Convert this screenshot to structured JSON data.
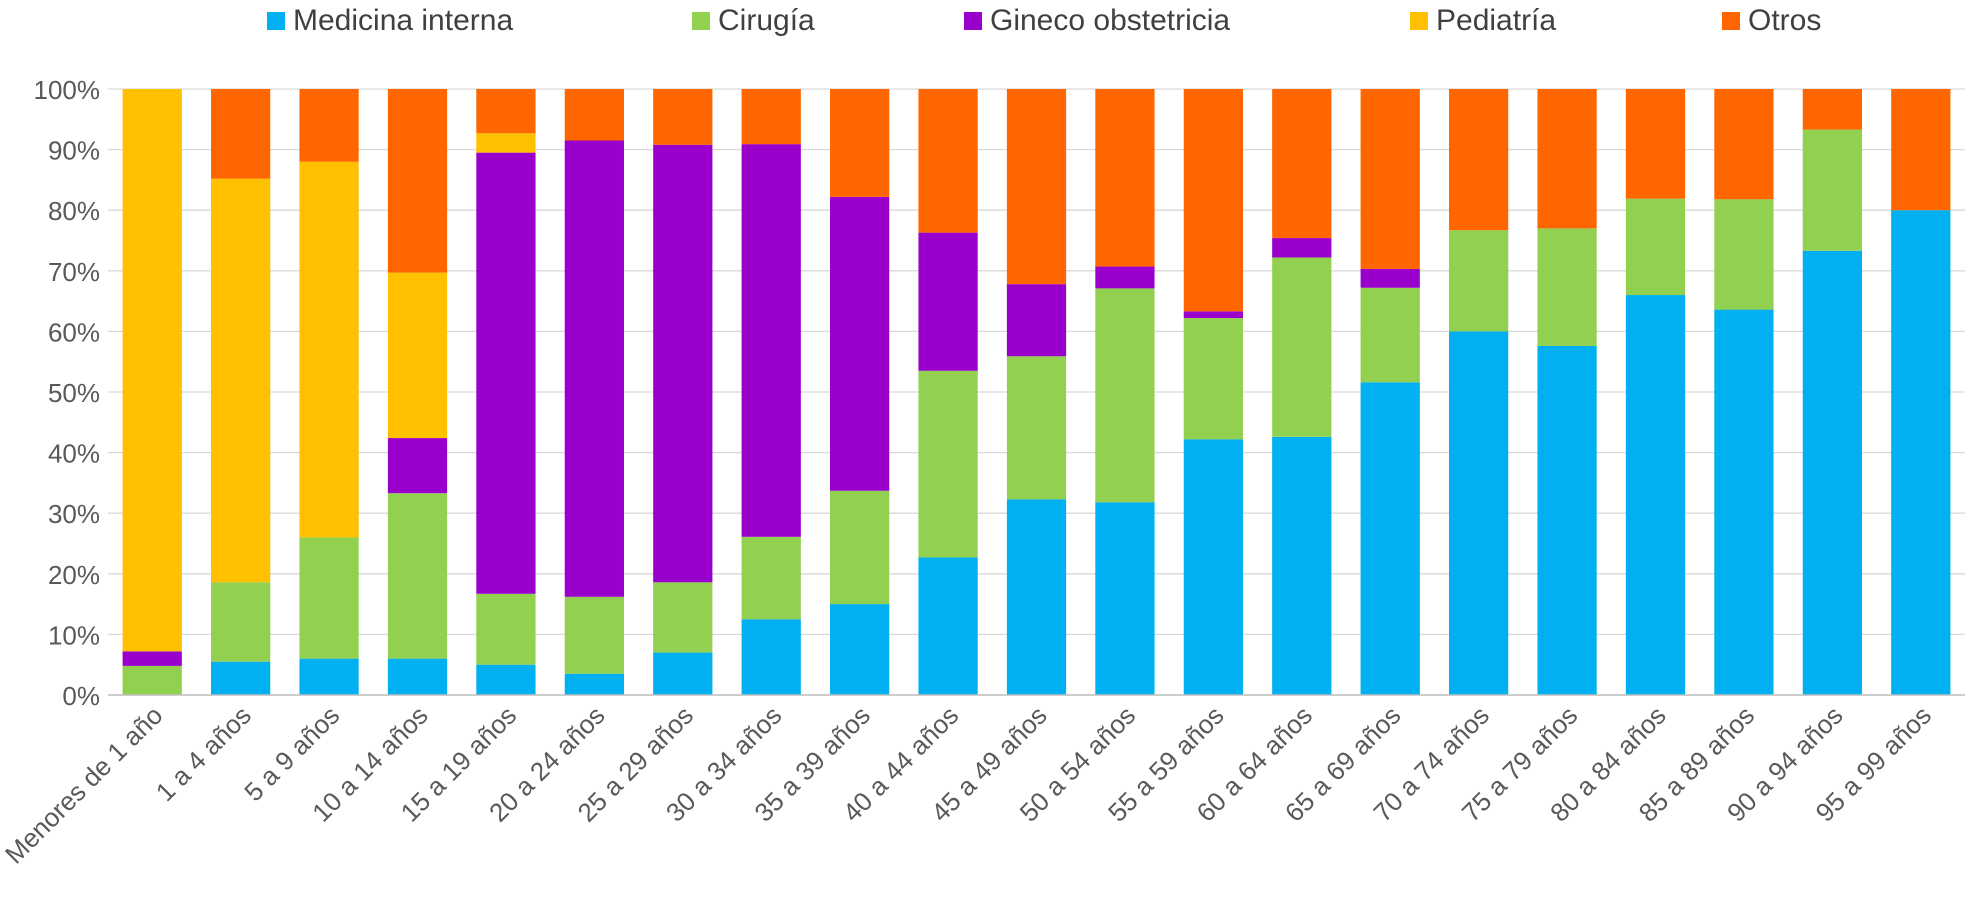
{
  "chart_data": {
    "type": "bar",
    "stacked": true,
    "percent": true,
    "title": "",
    "xlabel": "",
    "ylabel": "",
    "ylim": [
      0,
      100
    ],
    "yticks": [
      "0%",
      "10%",
      "20%",
      "30%",
      "40%",
      "50%",
      "60%",
      "70%",
      "80%",
      "90%",
      "100%"
    ],
    "grid": true,
    "legend_position": "top",
    "categories": [
      "Menores de 1 año",
      "1 a 4 años",
      "5 a 9 años",
      "10 a 14 años",
      "15 a 19 años",
      "20 a 24 años",
      "25 a 29 años",
      "30 a 34 años",
      "35 a 39 años",
      "40 a 44 años",
      "45 a 49 años",
      "50 a 54 años",
      "55 a 59 años",
      "60 a 64 años",
      "65 a 69 años",
      "70 a 74 años",
      "75 a 79 años",
      "80 a 84 años",
      "85 a 89 años",
      "90 a 94 años",
      "95 a 99 años"
    ],
    "series": [
      {
        "name": "Medicina interna",
        "color": "#00B0F0",
        "values": [
          0,
          5.5,
          6,
          6,
          5,
          3.5,
          7,
          12.5,
          15,
          22.7,
          32.3,
          31.8,
          42.2,
          42.6,
          51.6,
          60,
          57.6,
          66,
          63.6,
          73.3,
          80
        ]
      },
      {
        "name": "Cirugía",
        "color": "#92D050",
        "values": [
          4.8,
          13.1,
          20,
          27.3,
          11.7,
          12.7,
          11.6,
          13.6,
          18.7,
          30.8,
          23.6,
          35.3,
          20,
          29.6,
          15.6,
          16.7,
          19.4,
          15.9,
          18.2,
          20,
          0
        ]
      },
      {
        "name": "Gineco obstetricia",
        "color": "#9900CC",
        "values": [
          2.4,
          0,
          0,
          9.1,
          72.8,
          75.3,
          72.2,
          64.8,
          48.5,
          22.8,
          11.9,
          3.6,
          1.1,
          3.2,
          3.1,
          0,
          0,
          0,
          0,
          0,
          0
        ]
      },
      {
        "name": "Pediatría",
        "color": "#FFC000",
        "values": [
          92.8,
          66.6,
          62,
          27.3,
          3.2,
          0,
          0,
          0,
          0,
          0,
          0,
          0,
          0,
          0,
          0,
          0,
          0,
          0,
          0,
          0,
          0
        ]
      },
      {
        "name": "Otros",
        "color": "#FF6600",
        "values": [
          0,
          14.8,
          12,
          30.3,
          7.3,
          8.5,
          9.2,
          9.1,
          17.8,
          23.7,
          32.2,
          29.3,
          36.7,
          24.6,
          29.7,
          23.3,
          23,
          18.1,
          18.2,
          6.7,
          20
        ]
      }
    ]
  }
}
